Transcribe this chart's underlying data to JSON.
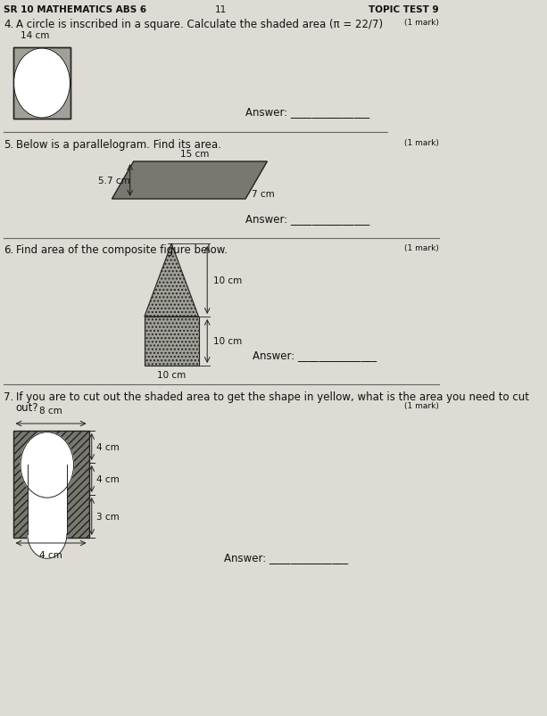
{
  "bg_color": "#c8c0b8",
  "page_color": "#dedad4",
  "header_text": "SR 10 MATHEMATICS ABS 6",
  "header_center": "11",
  "header_right": "TOPIC TEST 9",
  "q4_label": "4.",
  "q4_text": "A circle is inscribed in a square. Calculate the shaded area (π = 22/7)",
  "q4_mark": "(1 mark)",
  "q4_dim": "14 cm",
  "q4_answer": "Answer: _______________",
  "q5_num": "5.",
  "q5_text": "Below is a parallelogram. Find its area.",
  "q5_mark": "(1 mark)",
  "q5_dim1": "15 cm",
  "q5_dim2": "5.7 cm",
  "q5_dim3": "7 cm",
  "q5_answer": "Answer: _______________",
  "q6_num": "6.",
  "q6_text": "Find area of the composite figure below.",
  "q6_mark": "(1 mark)",
  "q6_dim1": "10 cm",
  "q6_dim2": "10 cm",
  "q6_dim3": "10 cm",
  "q6_answer": "Answer: _______________",
  "q7_num": "7.",
  "q7_text": "If you are to cut out the shaded area to get the shape in yellow, what is the area you need to cut out?",
  "q7_mark": "(1 mark)",
  "q7_dim1": "8 cm",
  "q7_dim2": "4 cm",
  "q7_dim3": "4 cm",
  "q7_dim4": "3 cm",
  "q7_dim5": "4 cm",
  "q7_answer": "Answer: _______________",
  "shape_hatch": "#909088",
  "line_color": "#222222",
  "text_color": "#111111",
  "gray_fill": "#a0a098",
  "dark_gray": "#787870"
}
